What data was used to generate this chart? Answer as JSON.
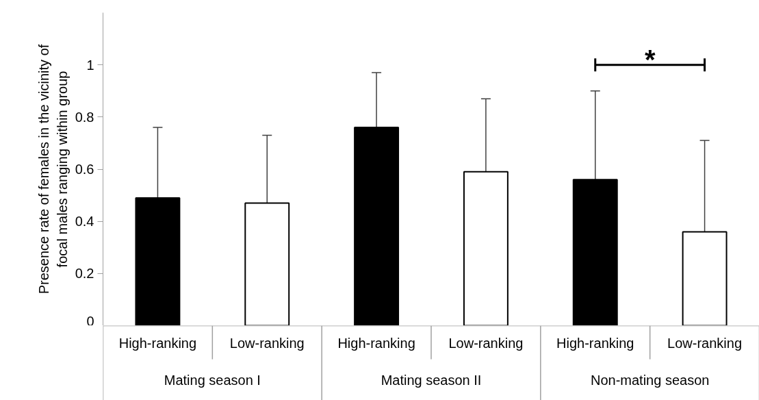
{
  "chart_data": {
    "type": "bar",
    "ylabel": "Presence rate of females in the vicinity of\nfocal males ranging within group",
    "categories": [
      "High-ranking",
      "Low-ranking",
      "High-ranking",
      "Low-ranking",
      "High-ranking",
      "Low-ranking"
    ],
    "values": [
      0.49,
      0.47,
      0.76,
      0.59,
      0.56,
      0.36
    ],
    "colors": [
      "#000000",
      "#ffffff",
      "#000000",
      "#ffffff",
      "#000000",
      "#ffffff"
    ],
    "errors": [
      [
        0.49,
        0.76
      ],
      [
        0.47,
        0.73
      ],
      [
        0.76,
        0.97
      ],
      [
        0.59,
        0.87
      ],
      [
        0.56,
        0.9
      ],
      [
        0.36,
        0.71
      ]
    ],
    "ylim": [
      0,
      1.2
    ],
    "yticks": [
      0,
      0.2,
      0.4,
      0.6,
      0.8,
      1
    ],
    "annotations": [
      "Mating season I",
      "Mating season II",
      "Non-mating season",
      "*"
    ]
  }
}
